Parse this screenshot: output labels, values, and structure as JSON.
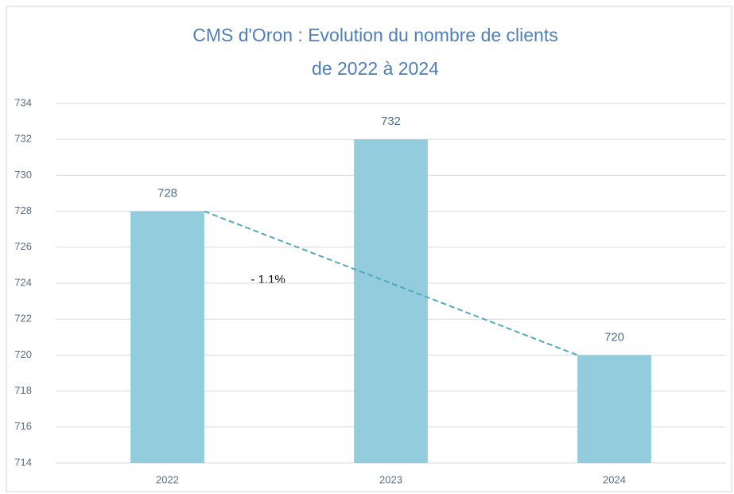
{
  "chart_data": {
    "type": "bar",
    "title": [
      "CMS d'Oron  : Evolution du nombre de clients",
      "de 2022 à 2024"
    ],
    "categories": [
      "2022",
      "2023",
      "2024"
    ],
    "values": [
      728,
      732,
      720
    ],
    "color": "#93cddd",
    "ylim": [
      714,
      734
    ],
    "yticks": [
      714,
      716,
      718,
      720,
      722,
      724,
      726,
      728,
      730,
      732,
      734
    ],
    "grid": true,
    "trend_line": {
      "color": "#4fa9bf",
      "dashed": true
    },
    "annotations": [
      "- 1.1%"
    ]
  }
}
